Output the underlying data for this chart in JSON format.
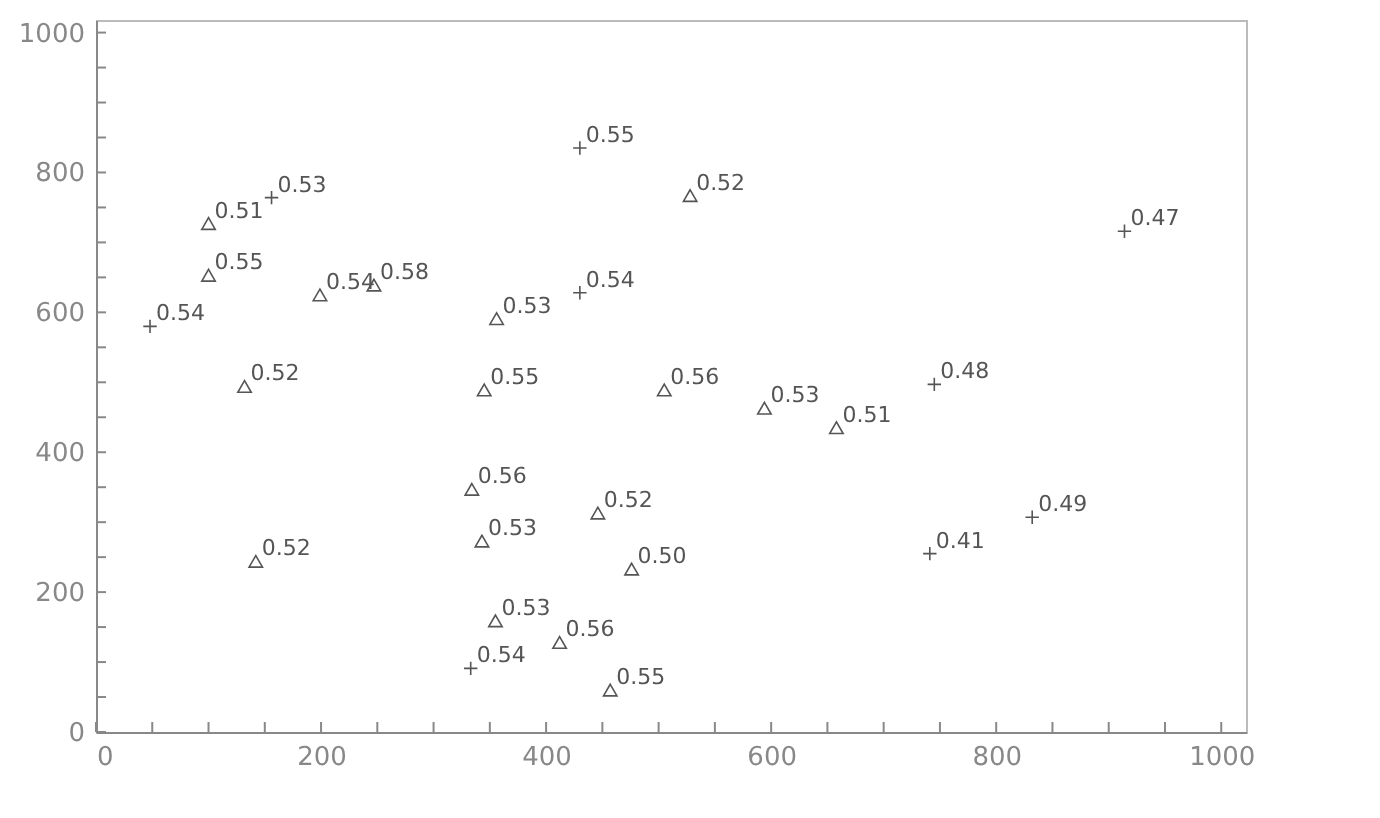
{
  "chart_data": {
    "type": "scatter",
    "xlim": [
      0,
      1022
    ],
    "ylim": [
      0,
      1018
    ],
    "xticks": [
      0,
      {
        "value": 50,
        "label": null
      },
      {
        "value": 100,
        "label": null
      },
      {
        "value": 150,
        "label": null
      },
      200,
      {
        "value": 250,
        "label": null
      },
      {
        "value": 300,
        "label": null
      },
      {
        "value": 350,
        "label": null
      },
      400,
      {
        "value": 450,
        "label": null
      },
      {
        "value": 500,
        "label": null
      },
      {
        "value": 550,
        "label": null
      },
      600,
      {
        "value": 650,
        "label": null
      },
      {
        "value": 700,
        "label": null
      },
      {
        "value": 750,
        "label": null
      },
      800,
      {
        "value": 850,
        "label": null
      },
      {
        "value": 900,
        "label": null
      },
      {
        "value": 950,
        "label": null
      },
      1000
    ],
    "yticks": [
      0,
      {
        "value": 50,
        "label": null
      },
      {
        "value": 100,
        "label": null
      },
      {
        "value": 150,
        "label": null
      },
      200,
      {
        "value": 250,
        "label": null
      },
      {
        "value": 300,
        "label": null
      },
      {
        "value": 350,
        "label": null
      },
      400,
      {
        "value": 450,
        "label": null
      },
      {
        "value": 500,
        "label": null
      },
      {
        "value": 550,
        "label": null
      },
      600,
      {
        "value": 650,
        "label": null
      },
      {
        "value": 700,
        "label": null
      },
      {
        "value": 750,
        "label": null
      },
      800,
      {
        "value": 850,
        "label": null
      },
      {
        "value": 900,
        "label": null
      },
      {
        "value": 950,
        "label": null
      },
      1000
    ],
    "grid": false,
    "series": [
      {
        "marker": "triangle",
        "color": "#555555",
        "x": [
          528,
          100,
          100,
          199,
          247,
          356,
          132,
          345,
          505,
          594,
          658,
          334,
          446,
          476,
          343,
          142,
          355,
          412,
          457
        ],
        "values": [
          767,
          727,
          653,
          625,
          639,
          591,
          494,
          489,
          489,
          463,
          435,
          347,
          313,
          233,
          273,
          244,
          159,
          128,
          60
        ]
      },
      {
        "marker": "cross",
        "color": "#555555",
        "x": [
          430,
          156,
          48,
          430,
          914,
          745,
          832,
          741,
          333
        ],
        "values": [
          835,
          764,
          580,
          628,
          716,
          497,
          307,
          255,
          91
        ]
      }
    ],
    "annotations": [
      {
        "text": "0.52",
        "x": 528,
        "y": 767
      },
      {
        "text": "0.51",
        "x": 100,
        "y": 727
      },
      {
        "text": "0.55",
        "x": 100,
        "y": 653
      },
      {
        "text": "0.54",
        "x": 199,
        "y": 625
      },
      {
        "text": "0.58",
        "x": 247,
        "y": 639
      },
      {
        "text": "0.53",
        "x": 356,
        "y": 591
      },
      {
        "text": "0.52",
        "x": 132,
        "y": 494
      },
      {
        "text": "0.55",
        "x": 345,
        "y": 489
      },
      {
        "text": "0.56",
        "x": 505,
        "y": 489
      },
      {
        "text": "0.53",
        "x": 594,
        "y": 463
      },
      {
        "text": "0.51",
        "x": 658,
        "y": 435
      },
      {
        "text": "0.56",
        "x": 334,
        "y": 347
      },
      {
        "text": "0.52",
        "x": 446,
        "y": 313
      },
      {
        "text": "0.50",
        "x": 476,
        "y": 233
      },
      {
        "text": "0.53",
        "x": 343,
        "y": 273
      },
      {
        "text": "0.52",
        "x": 142,
        "y": 244
      },
      {
        "text": "0.53",
        "x": 355,
        "y": 159
      },
      {
        "text": "0.56",
        "x": 412,
        "y": 128
      },
      {
        "text": "0.55",
        "x": 457,
        "y": 60
      },
      {
        "text": "0.55",
        "x": 430,
        "y": 835
      },
      {
        "text": "0.53",
        "x": 156,
        "y": 764
      },
      {
        "text": "0.54",
        "x": 48,
        "y": 580
      },
      {
        "text": "0.54",
        "x": 430,
        "y": 628
      },
      {
        "text": "0.47",
        "x": 914,
        "y": 716
      },
      {
        "text": "0.48",
        "x": 745,
        "y": 497
      },
      {
        "text": "0.49",
        "x": 832,
        "y": 307
      },
      {
        "text": "0.41",
        "x": 741,
        "y": 255
      },
      {
        "text": "0.54",
        "x": 333,
        "y": 91
      }
    ]
  }
}
